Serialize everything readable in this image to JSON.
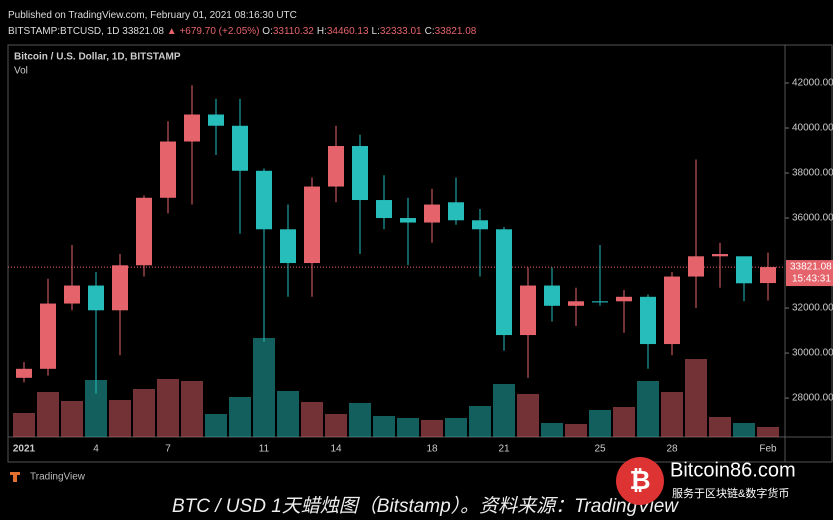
{
  "header": {
    "published": "Published on TradingView.com, February 01, 2021 08:16:30 UTC",
    "symbol": "BITSTAMP:BTCUSD, 1D",
    "last": "33821.08",
    "change": "▲ +679.70 (+2.05%)",
    "ohlc": [
      {
        "label": "O:",
        "value": "33110.32"
      },
      {
        "label": "H:",
        "value": "34460.13"
      },
      {
        "label": "L:",
        "value": "32333.01"
      },
      {
        "label": "C:",
        "value": "33821.08"
      }
    ]
  },
  "chart_data": {
    "type": "candlestick",
    "title": "Bitcoin / U.S. Dollar, 1D, BITSTAMP",
    "volume_title": "Vol",
    "categories": [
      "2021",
      null,
      null,
      "4",
      null,
      null,
      "7",
      null,
      null,
      null,
      "11",
      null,
      null,
      "14",
      null,
      null,
      null,
      "18",
      null,
      null,
      "21",
      null,
      null,
      null,
      "25",
      null,
      null,
      "28",
      null,
      null,
      null,
      "Feb"
    ],
    "open": [
      28900,
      29300,
      32200,
      33000,
      31900,
      33900,
      36900,
      39400,
      40600,
      40100,
      38100,
      35500,
      34000,
      37400,
      39200,
      36800,
      36000,
      35800,
      36700,
      35900,
      35500,
      30800,
      33000,
      32100,
      32300,
      32300,
      32500,
      30400,
      33400,
      34300,
      34300,
      33110.32
    ],
    "high": [
      29600,
      33300,
      34800,
      33600,
      34400,
      37000,
      40300,
      41900,
      41300,
      41300,
      38200,
      36600,
      37800,
      40100,
      39700,
      37900,
      36900,
      37300,
      37800,
      36400,
      35600,
      33800,
      33800,
      32900,
      34800,
      32800,
      32600,
      33600,
      38600,
      34900,
      34300,
      34460.13
    ],
    "low": [
      28700,
      29000,
      31900,
      28200,
      29900,
      33400,
      36200,
      36600,
      38800,
      35300,
      30500,
      32500,
      32500,
      36700,
      34400,
      35500,
      33900,
      34900,
      35700,
      33400,
      30100,
      28900,
      31400,
      31200,
      32100,
      30900,
      29300,
      29900,
      32000,
      32900,
      32300,
      32333.01
    ],
    "close": [
      29300,
      32200,
      33000,
      31900,
      33900,
      36900,
      39400,
      40600,
      40100,
      38100,
      35500,
      34000,
      37400,
      39200,
      36800,
      36000,
      35800,
      36600,
      35900,
      35500,
      30800,
      33000,
      32100,
      32300,
      32250,
      32500,
      30400,
      33400,
      34300,
      34400,
      33100,
      33821.08
    ],
    "volume": [
      24,
      45,
      36,
      57,
      37,
      48,
      58,
      56,
      23,
      40,
      99,
      46,
      35,
      23,
      34,
      21,
      19,
      17,
      19,
      31,
      53,
      43,
      14,
      13,
      27,
      30,
      56,
      45,
      78,
      20,
      14,
      10
    ],
    "volume_lim": [
      0,
      100
    ],
    "up_color": "#e5646c",
    "down_color": "#26bdbb",
    "ylim": [
      26270,
      43600
    ],
    "yticks": [
      {
        "value": 28000,
        "label": "28000.00"
      },
      {
        "value": 30000,
        "label": "30000.00"
      },
      {
        "value": 32000,
        "label": "32000.00"
      },
      {
        "value": 36000,
        "label": "36000.00"
      },
      {
        "value": 38000,
        "label": "38000.00"
      },
      {
        "value": 40000,
        "label": "40000.00"
      },
      {
        "value": 42000,
        "label": "42000.00"
      }
    ],
    "last_price": {
      "value": 33821.08,
      "label": "33821.08",
      "countdown": "15:43:31"
    }
  },
  "footer": {
    "logo": "TradingView",
    "caption": "BTC / USD 1天蜡烛图（Bitstamp）。资料来源：TradingView",
    "watermark": "Bitcoin86.com",
    "watermark_sub": "服务于区块链&数字货币"
  }
}
